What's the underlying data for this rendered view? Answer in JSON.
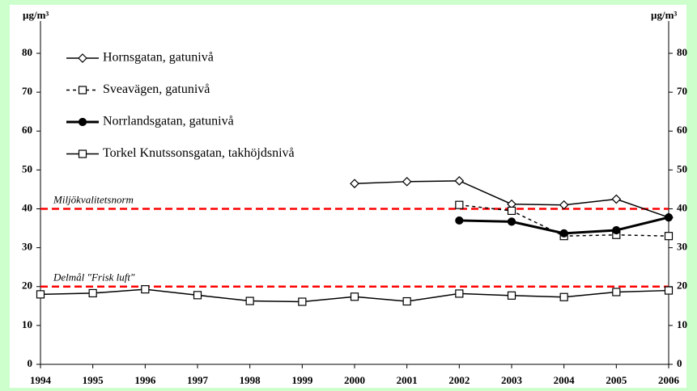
{
  "chart_data": {
    "type": "line",
    "y_label": "µg/m³",
    "y2_label": "µg/m³",
    "x": [
      1994,
      1995,
      1996,
      1997,
      1998,
      1999,
      2000,
      2001,
      2002,
      2003,
      2004,
      2005,
      2006
    ],
    "xlim": [
      1994,
      2006
    ],
    "xticks": [
      1994,
      1995,
      1996,
      1997,
      1998,
      1999,
      2000,
      2001,
      2002,
      2003,
      2004,
      2005,
      2006
    ],
    "ylim": [
      0,
      80
    ],
    "yticks": [
      0,
      10,
      20,
      30,
      40,
      50,
      60,
      70,
      80
    ],
    "y2lim": [
      0,
      80
    ],
    "y2ticks": [
      0,
      10,
      20,
      30,
      40,
      50,
      60,
      70,
      80
    ],
    "legend": "upper left",
    "series": [
      {
        "name": "Hornsgatan, gatunivå",
        "color": "#000000",
        "style": "solid",
        "marker": "diamond",
        "width": 1.5,
        "values": [
          null,
          null,
          null,
          null,
          null,
          null,
          46.5,
          47,
          47.2,
          41.2,
          41,
          42.5,
          37.8
        ]
      },
      {
        "name": "Sveavägen, gatunivå",
        "color": "#000000",
        "style": "dashed",
        "marker": "square",
        "width": 1.5,
        "values": [
          null,
          null,
          null,
          null,
          null,
          null,
          null,
          null,
          41,
          39.5,
          33,
          33.3,
          33
        ]
      },
      {
        "name": "Norrlandsgatan, gatunivå",
        "color": "#000000",
        "style": "solid",
        "marker": "circle",
        "width": 3,
        "values": [
          null,
          null,
          null,
          null,
          null,
          null,
          null,
          null,
          37,
          36.7,
          33.7,
          34.5,
          37.8
        ]
      },
      {
        "name": "Torkel Knutssonsgatan, takhöjdsnivå",
        "color": "#000000",
        "style": "solid",
        "marker": "square",
        "width": 1.5,
        "values": [
          18,
          18.3,
          19.3,
          17.8,
          16.3,
          16.1,
          17.4,
          16.2,
          18.2,
          17.7,
          17.3,
          18.6,
          19
        ]
      }
    ],
    "reference_lines": [
      {
        "value": 40,
        "label": "Miljökvalitetsnorm",
        "color": "#ff0000"
      },
      {
        "value": 20,
        "label": "Delmål \"Frisk luft\"",
        "color": "#ff0000"
      }
    ]
  }
}
